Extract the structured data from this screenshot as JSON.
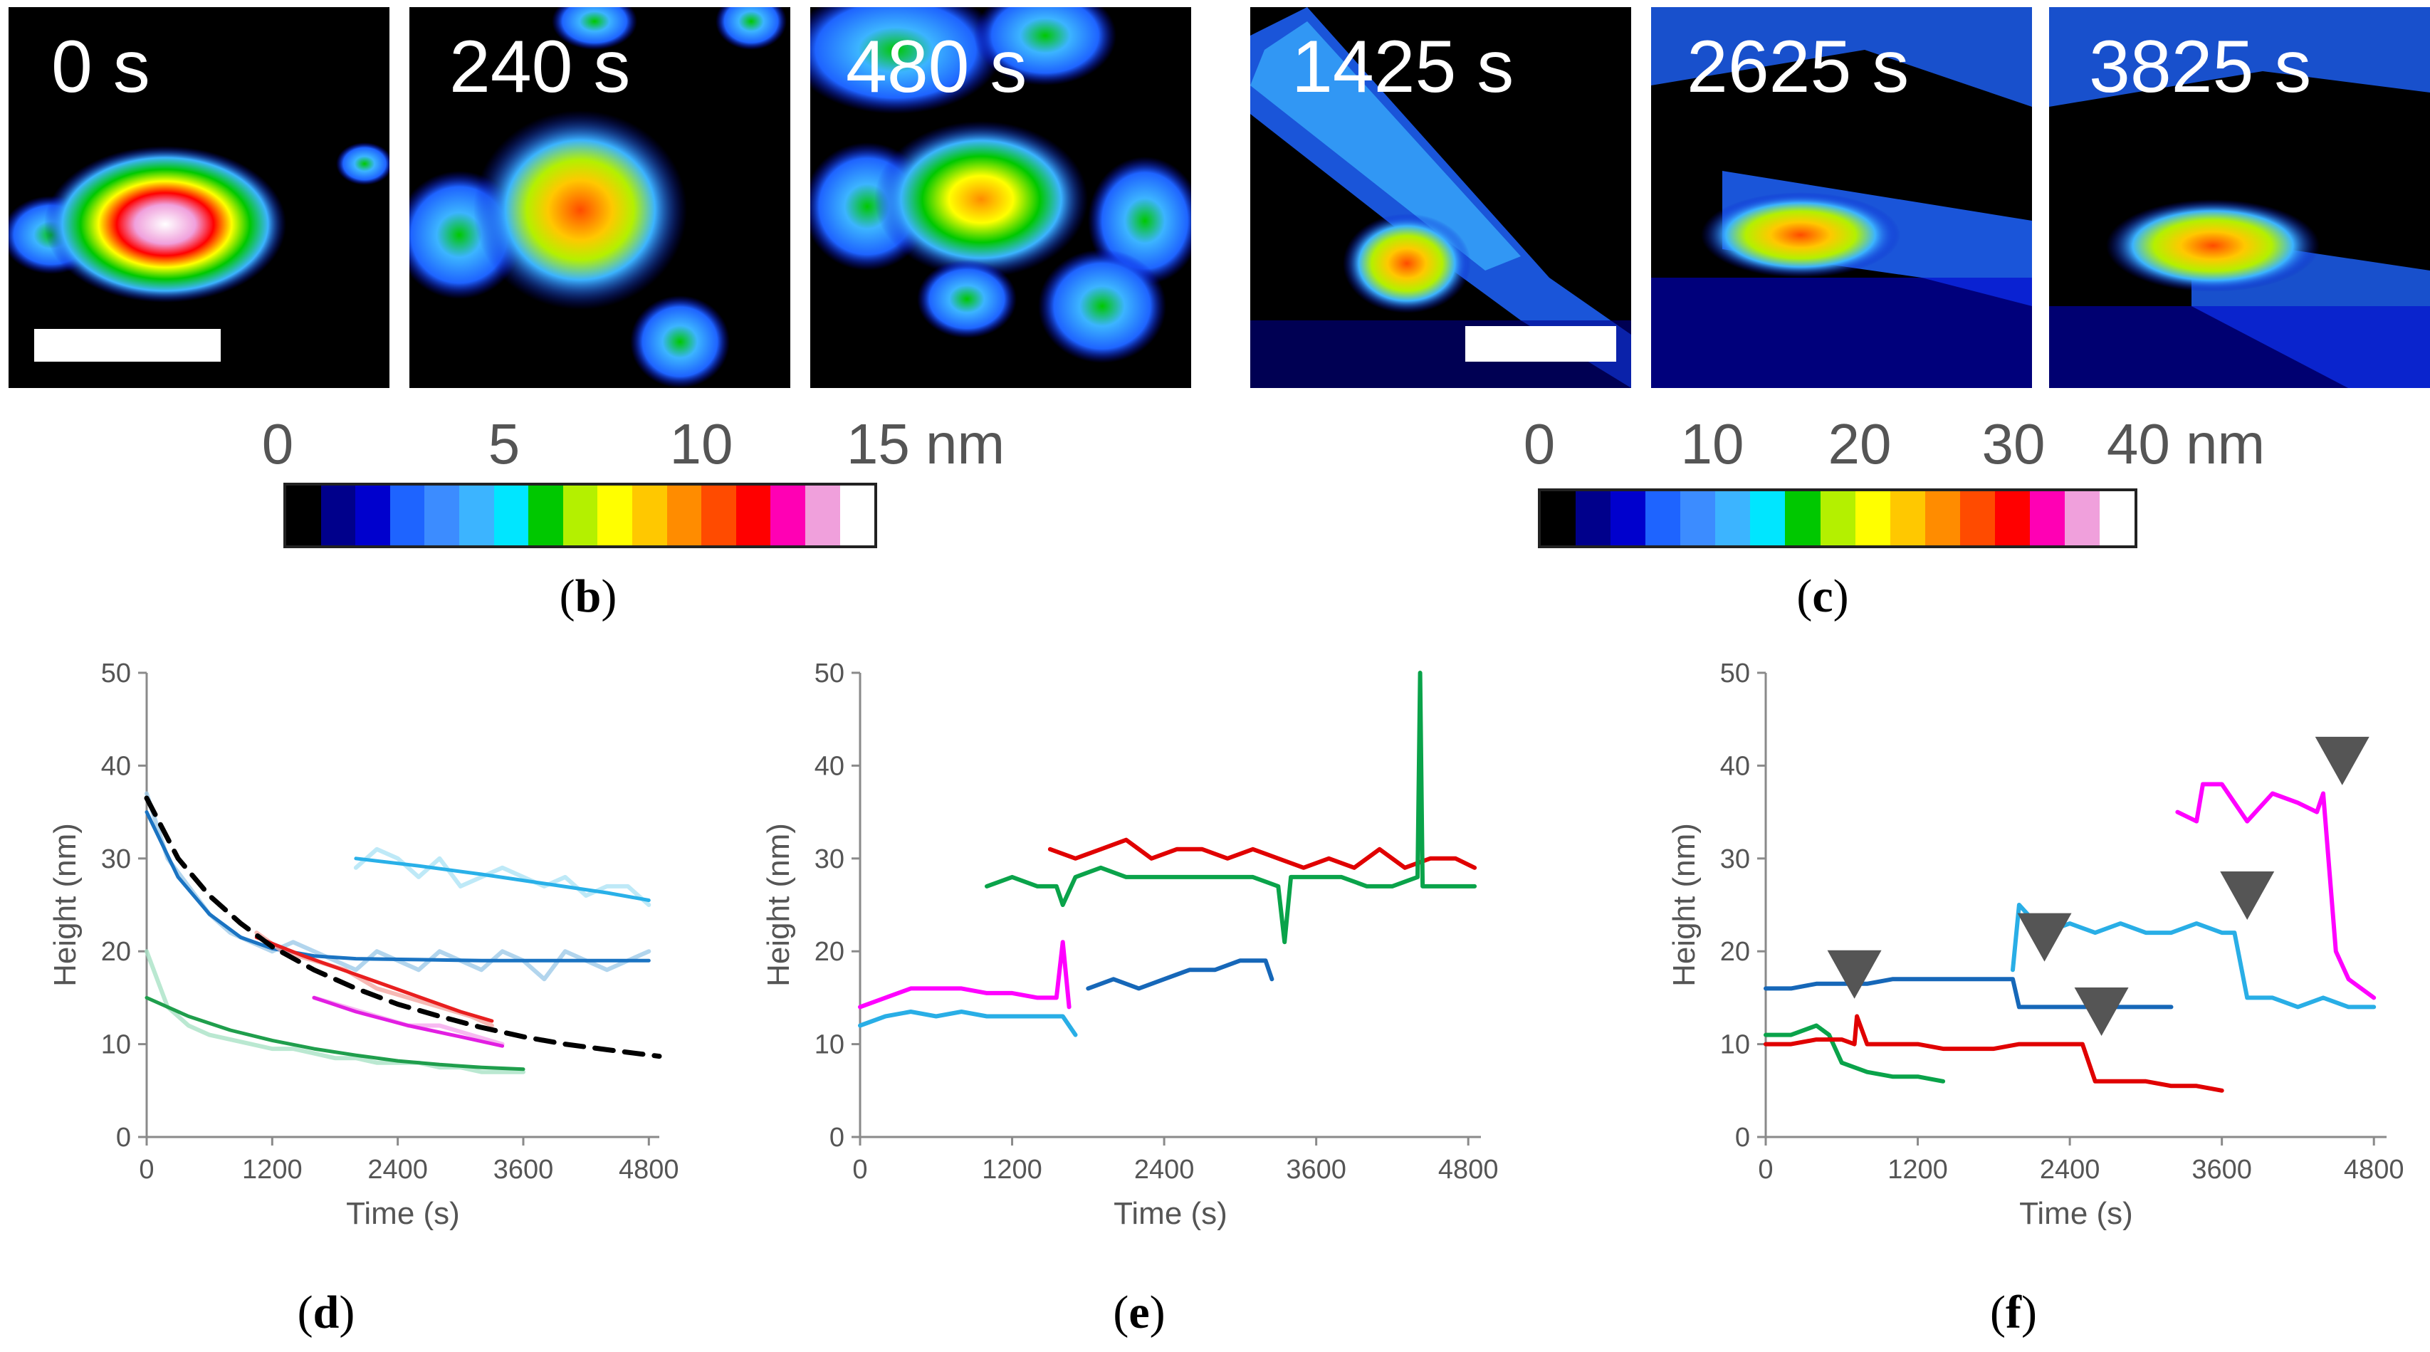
{
  "panel_b": {
    "label_open": "(",
    "label_letter": "b",
    "label_close": ")",
    "frames": [
      "0 s",
      "240 s",
      "480 s"
    ],
    "colorbar": {
      "ticks": [
        "0",
        "5",
        "10",
        "15 nm"
      ],
      "max_nm": 15
    }
  },
  "panel_c": {
    "label_open": "(",
    "label_letter": "c",
    "label_close": ")",
    "frames": [
      "1425 s",
      "2625 s",
      "3825 s"
    ],
    "colorbar": {
      "ticks": [
        "0",
        "10",
        "20",
        "30",
        "40 nm"
      ],
      "max_nm": 40
    }
  },
  "colormap": [
    "#000000",
    "#00008b",
    "#0000cd",
    "#1e64ff",
    "#3c8cff",
    "#3cb4ff",
    "#00e6ff",
    "#00c800",
    "#b4f000",
    "#ffff00",
    "#ffc800",
    "#ff8c00",
    "#ff4b00",
    "#ff0000",
    "#ff00b4",
    "#f0a0dc",
    "#ffffff"
  ],
  "panel_d_label": {
    "open": "(",
    "letter": "d",
    "close": ")"
  },
  "panel_e_label": {
    "open": "(",
    "letter": "e",
    "close": ")"
  },
  "panel_f_label": {
    "open": "(",
    "letter": "f",
    "close": ")"
  },
  "chart_data": [
    {
      "id": "d",
      "type": "line",
      "xlabel": "Time (s)",
      "ylabel": "Height (nm)",
      "xlim": [
        0,
        4900
      ],
      "ylim": [
        0,
        50
      ],
      "xticks": [
        0,
        1200,
        2400,
        3600,
        4800
      ],
      "yticks": [
        0,
        10,
        20,
        30,
        40,
        50
      ],
      "grid": false,
      "series": [
        {
          "color": "#9fcbe8",
          "style": "raw",
          "x": [
            0,
            200,
            400,
            600,
            800,
            1000,
            1200,
            1400,
            1600,
            1800,
            2000,
            2200,
            2400,
            2600,
            2800,
            3000,
            3200,
            3400,
            3600,
            3800,
            4000,
            4200,
            4400,
            4600,
            4800
          ],
          "y": [
            37,
            30,
            27,
            24,
            22,
            21,
            20,
            21,
            20,
            19,
            18,
            20,
            19,
            18,
            20,
            19,
            18,
            20,
            19,
            17,
            20,
            19,
            18,
            19,
            20
          ]
        },
        {
          "color": "#1a73c2",
          "style": "fit",
          "x": [
            0,
            300,
            600,
            900,
            1200,
            1600,
            2000,
            2600,
            3200,
            3800,
            4400,
            4800
          ],
          "y": [
            35,
            28,
            24,
            21.5,
            20.3,
            19.5,
            19.2,
            19.1,
            19,
            19,
            19,
            19
          ]
        },
        {
          "color": "#aee3f5",
          "style": "raw",
          "x": [
            2000,
            2200,
            2400,
            2600,
            2800,
            3000,
            3200,
            3400,
            3600,
            3800,
            4000,
            4200,
            4400,
            4600,
            4800
          ],
          "y": [
            29,
            31,
            30,
            28,
            30,
            27,
            28,
            29,
            28,
            27,
            28,
            26,
            27,
            27,
            25
          ]
        },
        {
          "color": "#29b0e8",
          "style": "fit",
          "x": [
            2000,
            2600,
            3200,
            3800,
            4400,
            4800
          ],
          "y": [
            30,
            29.2,
            28.3,
            27.3,
            26.3,
            25.5
          ]
        },
        {
          "color": "#f4a7a3",
          "style": "raw",
          "x": [
            1050,
            1300,
            1600,
            1900,
            2200,
            2500,
            2800,
            3100,
            3300
          ],
          "y": [
            22,
            20,
            19,
            18,
            16,
            15,
            14,
            13,
            12
          ]
        },
        {
          "color": "#e81f1f",
          "style": "fit",
          "x": [
            1050,
            1500,
            2000,
            2500,
            3000,
            3300
          ],
          "y": [
            21.5,
            19.5,
            17.5,
            15.5,
            13.5,
            12.5
          ]
        },
        {
          "color": "#f5a8ee",
          "style": "raw",
          "x": [
            1600,
            1900,
            2200,
            2500,
            2800,
            3100,
            3400
          ],
          "y": [
            15,
            14,
            13,
            12,
            12,
            11,
            10
          ]
        },
        {
          "color": "#e21ee2",
          "style": "fit",
          "x": [
            1600,
            2000,
            2500,
            3000,
            3400
          ],
          "y": [
            15,
            13.5,
            12,
            10.8,
            9.8
          ]
        },
        {
          "color": "#a9e2c5",
          "style": "raw",
          "x": [
            0,
            200,
            400,
            600,
            800,
            1000,
            1200,
            1400,
            1600,
            1800,
            2000,
            2200,
            2400,
            2600,
            2800,
            3000,
            3200,
            3400,
            3600
          ],
          "y": [
            20,
            14,
            12,
            11,
            10.5,
            10,
            9.5,
            9.5,
            9,
            8.5,
            8.5,
            8,
            8,
            8,
            7.5,
            7.5,
            7,
            7,
            7
          ]
        },
        {
          "color": "#1f9e4c",
          "style": "fit",
          "x": [
            0,
            400,
            800,
            1200,
            1600,
            2000,
            2400,
            2800,
            3200,
            3600
          ],
          "y": [
            15,
            13,
            11.5,
            10.4,
            9.5,
            8.8,
            8.2,
            7.8,
            7.5,
            7.3
          ]
        },
        {
          "color": "#000000",
          "style": "dashed",
          "x": [
            0,
            300,
            600,
            900,
            1200,
            1600,
            2000,
            2400,
            2800,
            3200,
            3600,
            4000,
            4400,
            4900
          ],
          "y": [
            36.5,
            30,
            26,
            23,
            20.5,
            18,
            16,
            14.3,
            13,
            11.8,
            10.8,
            10,
            9.4,
            8.7
          ]
        }
      ]
    },
    {
      "id": "e",
      "type": "line",
      "xlabel": "Time (s)",
      "ylabel": "Height (nm)",
      "xlim": [
        0,
        4900
      ],
      "ylim": [
        0,
        50
      ],
      "xticks": [
        0,
        1200,
        2400,
        3600,
        4800
      ],
      "yticks": [
        0,
        10,
        20,
        30,
        40,
        50
      ],
      "grid": false,
      "series": [
        {
          "color": "#ff00ff",
          "x": [
            0,
            200,
            400,
            600,
            800,
            1000,
            1200,
            1400,
            1550,
            1600,
            1650
          ],
          "y": [
            14,
            15,
            16,
            16,
            16,
            15.5,
            15.5,
            15,
            15,
            21,
            14
          ]
        },
        {
          "color": "#29aee6",
          "x": [
            0,
            200,
            400,
            600,
            800,
            1000,
            1200,
            1400,
            1600,
            1700
          ],
          "y": [
            12,
            13,
            13.5,
            13,
            13.5,
            13,
            13,
            13,
            13,
            11
          ]
        },
        {
          "color": "#e00000",
          "x": [
            1500,
            1700,
            1900,
            2100,
            2300,
            2500,
            2700,
            2900,
            3100,
            3300,
            3500,
            3700,
            3900,
            4100,
            4300,
            4500,
            4700,
            4850
          ],
          "y": [
            31,
            30,
            31,
            32,
            30,
            31,
            31,
            30,
            31,
            30,
            29,
            30,
            29,
            31,
            29,
            30,
            30,
            29
          ]
        },
        {
          "color": "#0aa34a",
          "x": [
            1000,
            1200,
            1400,
            1550,
            1600,
            1700,
            1900,
            2100,
            2300,
            2500,
            2700,
            2900,
            3100,
            3300,
            3350,
            3400,
            3600,
            3800,
            4000,
            4200,
            4400,
            4420,
            4440,
            4600,
            4800,
            4850
          ],
          "y": [
            27,
            28,
            27,
            27,
            25,
            28,
            29,
            28,
            28,
            28,
            28,
            28,
            28,
            27,
            21,
            28,
            28,
            28,
            27,
            27,
            28,
            50,
            27,
            27,
            27,
            27
          ]
        },
        {
          "color": "#1667b8",
          "x": [
            1800,
            2000,
            2200,
            2400,
            2600,
            2800,
            3000,
            3200,
            3250
          ],
          "y": [
            16,
            17,
            16,
            17,
            18,
            18,
            19,
            19,
            17
          ]
        }
      ]
    },
    {
      "id": "f",
      "type": "line",
      "xlabel": "Time (s)",
      "ylabel": "Height (nm)",
      "xlim": [
        0,
        4900
      ],
      "ylim": [
        0,
        50
      ],
      "xticks": [
        0,
        1200,
        2400,
        3600,
        4800
      ],
      "yticks": [
        0,
        10,
        20,
        30,
        40,
        50
      ],
      "grid": false,
      "series": [
        {
          "color": "#1667b8",
          "x": [
            0,
            200,
            400,
            600,
            800,
            1000,
            1200,
            1400,
            1600,
            1800,
            1950,
            2000,
            2200,
            2400,
            2600,
            2800,
            3000,
            3200
          ],
          "y": [
            16,
            16,
            16.5,
            16.5,
            16.5,
            17,
            17,
            17,
            17,
            17,
            17,
            14,
            14,
            14,
            14,
            14,
            14,
            14
          ]
        },
        {
          "color": "#0aa34a",
          "x": [
            0,
            200,
            400,
            500,
            600,
            800,
            1000,
            1200,
            1400
          ],
          "y": [
            11,
            11,
            12,
            11,
            8,
            7,
            6.5,
            6.5,
            6
          ]
        },
        {
          "color": "#e00000",
          "x": [
            0,
            200,
            400,
            600,
            700,
            720,
            800,
            1000,
            1200,
            1400,
            1600,
            1800,
            2000,
            2200,
            2400,
            2500,
            2600,
            2800,
            3000,
            3200,
            3400,
            3600
          ],
          "y": [
            10,
            10,
            10.5,
            10.5,
            10,
            13,
            10,
            10,
            10,
            9.5,
            9.5,
            9.5,
            10,
            10,
            10,
            10,
            6,
            6,
            6,
            5.5,
            5.5,
            5
          ]
        },
        {
          "color": "#29aee6",
          "x": [
            1950,
            2000,
            2200,
            2400,
            2600,
            2800,
            3000,
            3200,
            3400,
            3600,
            3700,
            3800,
            4000,
            4200,
            4400,
            4600,
            4800
          ],
          "y": [
            18,
            25,
            22,
            23,
            22,
            23,
            22,
            22,
            23,
            22,
            22,
            15,
            15,
            14,
            15,
            14,
            14
          ]
        },
        {
          "color": "#ff00ff",
          "x": [
            3250,
            3400,
            3450,
            3600,
            3800,
            4000,
            4200,
            4350,
            4400,
            4500,
            4600,
            4800
          ],
          "y": [
            35,
            34,
            38,
            38,
            34,
            37,
            36,
            35,
            37,
            20,
            17,
            15
          ]
        }
      ],
      "markers": [
        {
          "x": 700,
          "y": 17.5
        },
        {
          "x": 2200,
          "y": 21.5
        },
        {
          "x": 2650,
          "y": 13.5
        },
        {
          "x": 3800,
          "y": 26
        },
        {
          "x": 4550,
          "y": 40.5
        }
      ]
    }
  ]
}
